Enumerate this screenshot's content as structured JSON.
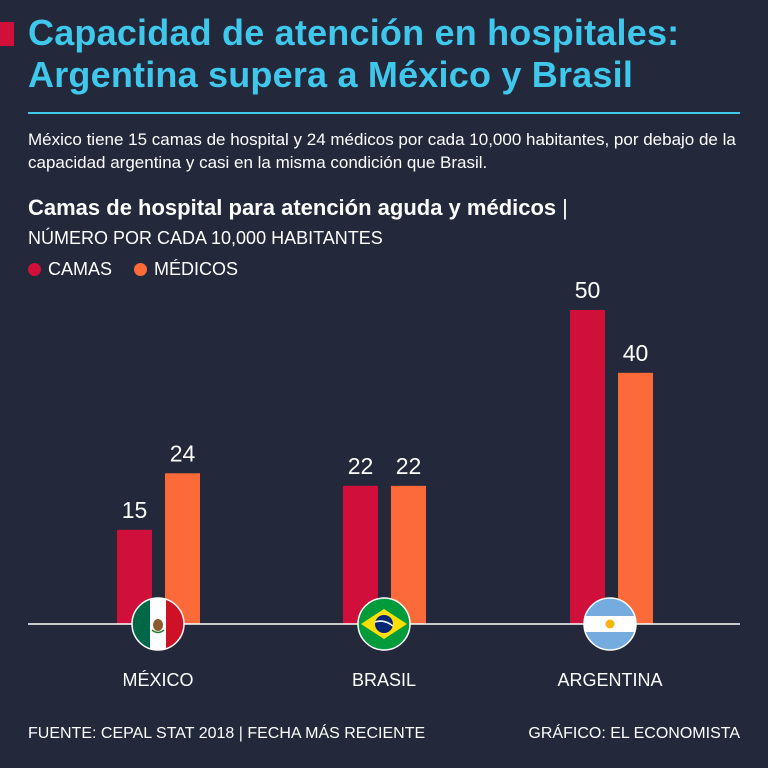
{
  "title_line1": "Capacidad de atención en hospitales:",
  "title_line2": "Argentina supera a México y Brasil",
  "subtitle": "México tiene 15 camas de hospital y 24 médicos por cada 10,000 habitantes, por debajo de la capacidad argentina y casi en la misma condición que Brasil.",
  "colors": {
    "background": "#23283b",
    "accent": "#3fc8ec",
    "camas": "#d0103a",
    "medicos": "#fb6a38"
  },
  "chart_data": {
    "type": "bar",
    "title": "Camas de hospital para atención aguda y médicos",
    "title_separator": "|",
    "ylabel": "NÚMERO POR CADA 10,000 HABITANTES",
    "xlabel": "",
    "categories": [
      "MÉXICO",
      "BRASIL",
      "ARGENTINA"
    ],
    "series": [
      {
        "name": "CAMAS",
        "values": [
          15,
          22,
          50
        ]
      },
      {
        "name": "MÉDICOS",
        "values": [
          24,
          22,
          40
        ]
      }
    ],
    "ylim": [
      0,
      50
    ],
    "grid": false,
    "legend_position": "top-left"
  },
  "footer": {
    "source": "FUENTE: CEPAL STAT 2018 | FECHA MÁS RECIENTE",
    "credit": "GRÁFICO: EL ECONOMISTA"
  }
}
